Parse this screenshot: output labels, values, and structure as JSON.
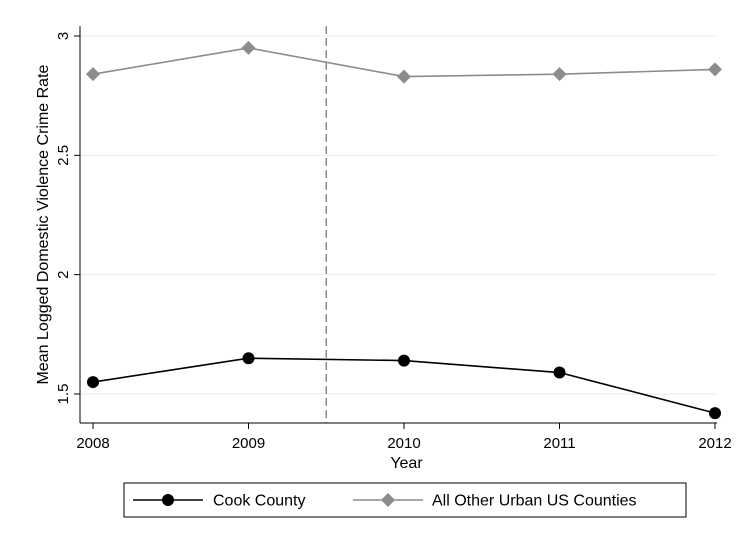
{
  "chart_data": {
    "type": "line",
    "xlabel": "Year",
    "ylabel": "Mean Logged Domestic Violence Crime Rate",
    "x": [
      2008,
      2009,
      2010,
      2011,
      2012
    ],
    "xlim": [
      2008,
      2012
    ],
    "ylim": [
      1.41,
      3.03
    ],
    "yticks": [
      1.5,
      2,
      2.5,
      3
    ],
    "ytick_labels": [
      "1.5",
      "2",
      "2.5",
      "3"
    ],
    "xtick_labels": [
      "2008",
      "2009",
      "2010",
      "2011",
      "2012"
    ],
    "grid": true,
    "reference_line": {
      "x": 2009.5,
      "style": "dashed"
    },
    "legend_position": "bottom",
    "series": [
      {
        "name": "Cook County",
        "values": [
          1.55,
          1.65,
          1.64,
          1.59,
          1.42
        ],
        "color": "#000000",
        "marker": "circle"
      },
      {
        "name": "All Other Urban US Counties",
        "values": [
          2.84,
          2.95,
          2.83,
          2.84,
          2.86
        ],
        "color": "#8c8c8c",
        "marker": "diamond"
      }
    ]
  }
}
